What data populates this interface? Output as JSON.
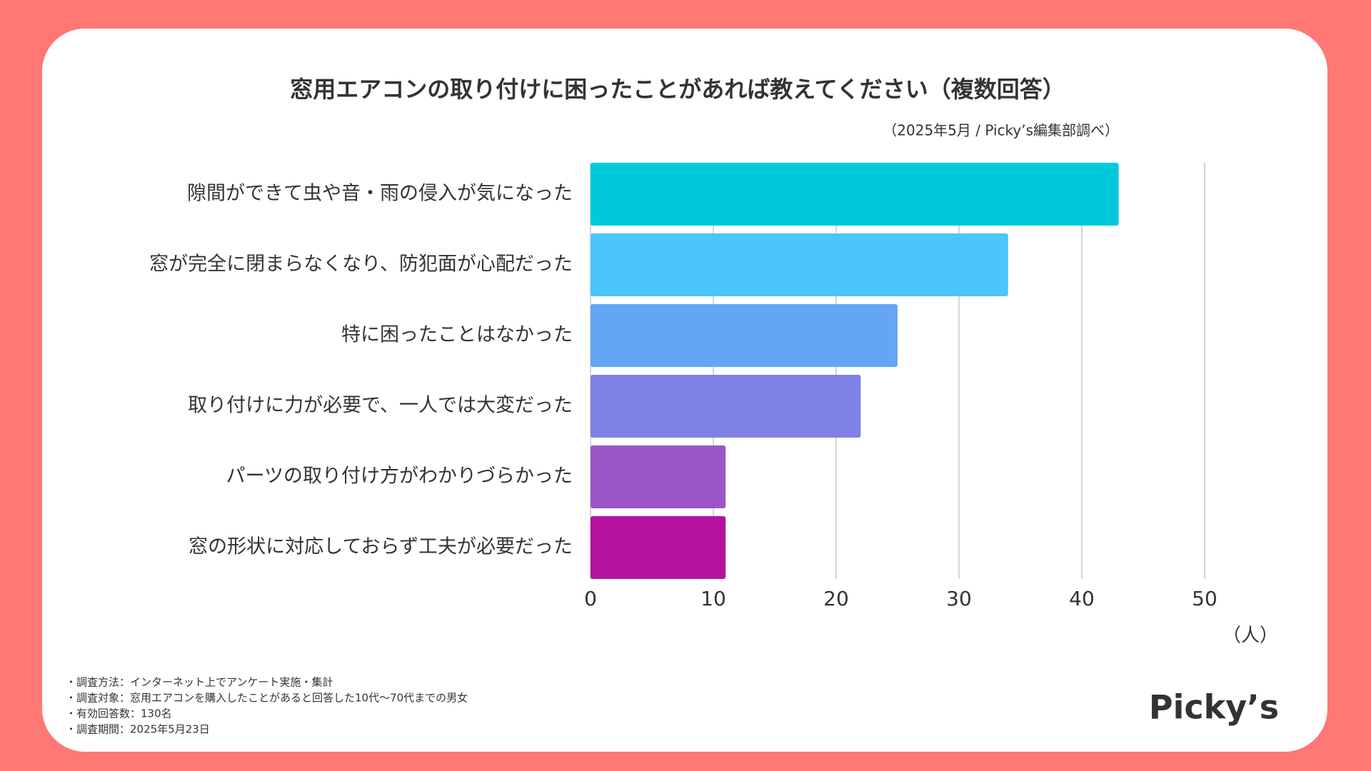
{
  "chart_data": {
    "type": "bar",
    "orientation": "horizontal",
    "title": "窓用エアコンの取り付けに困ったことがあれば教えてください（複数回答）",
    "subtitle": "（2025年5月 / Picky’s編集部調べ）",
    "categories": [
      "隙間ができて虫や音・雨の侵入が気になった",
      "窓が完全に閉まらなくなり、防犯面が心配だった",
      "特に困ったことはなかった",
      "取り付けに力が必要で、一人では大変だった",
      "パーツの取り付け方がわかりづらかった",
      "窓の形状に対応しておらず工夫が必要だった"
    ],
    "values": [
      43,
      34,
      25,
      22,
      11,
      11
    ],
    "colors": [
      "#00c9dc",
      "#4bc5fa",
      "#65a6f4",
      "#7f81e4",
      "#9a55c8",
      "#b5139e"
    ],
    "xlim": [
      0,
      50
    ],
    "xticks": [
      0,
      10,
      20,
      30,
      40,
      50
    ],
    "x_label": "（人）",
    "grid": true
  },
  "notes": [
    "・調査方法：インターネット上でアンケート実施・集計",
    "・調査対象：窓用エアコンを購入したことがあると回答した10代〜70代までの男女",
    "・有効回答数：130名",
    "・調査期間：2025年5月23日"
  ],
  "logo": "Picky’s"
}
